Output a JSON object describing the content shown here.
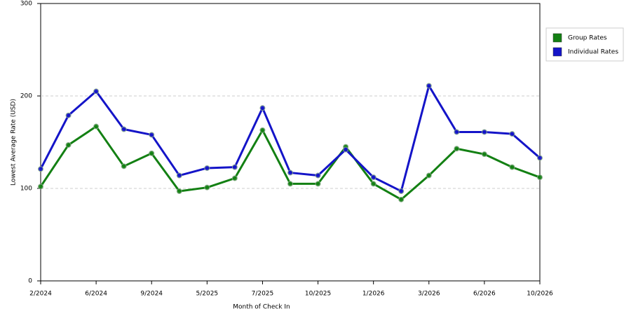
{
  "chart_data": {
    "type": "line",
    "x_label": "Month of Check In",
    "y_label": "Lowest Average Rate (USD)",
    "categories": [
      "2/2024",
      null,
      "6/2024",
      null,
      "9/2024",
      null,
      "5/2025",
      null,
      "7/2025",
      null,
      "10/2025",
      null,
      "1/2026",
      null,
      "3/2026",
      null,
      "6/2026",
      null,
      "10/2026"
    ],
    "series": [
      {
        "name": "Group Rates",
        "color": "#138013",
        "values": [
          102,
          147,
          167,
          124,
          138,
          97,
          101,
          111,
          163,
          105,
          105,
          145,
          105,
          88,
          114,
          143,
          137,
          123,
          112
        ]
      },
      {
        "name": "Individual Rates",
        "color": "#1414c8",
        "values": [
          121,
          179,
          205,
          164,
          158,
          114,
          122,
          123,
          187,
          117,
          114,
          142,
          112,
          97,
          211,
          161,
          161,
          159,
          133
        ]
      }
    ],
    "ylim": [
      0,
      300
    ],
    "yticks": [
      0,
      100,
      200,
      300
    ],
    "grid": true,
    "legend": "right"
  }
}
